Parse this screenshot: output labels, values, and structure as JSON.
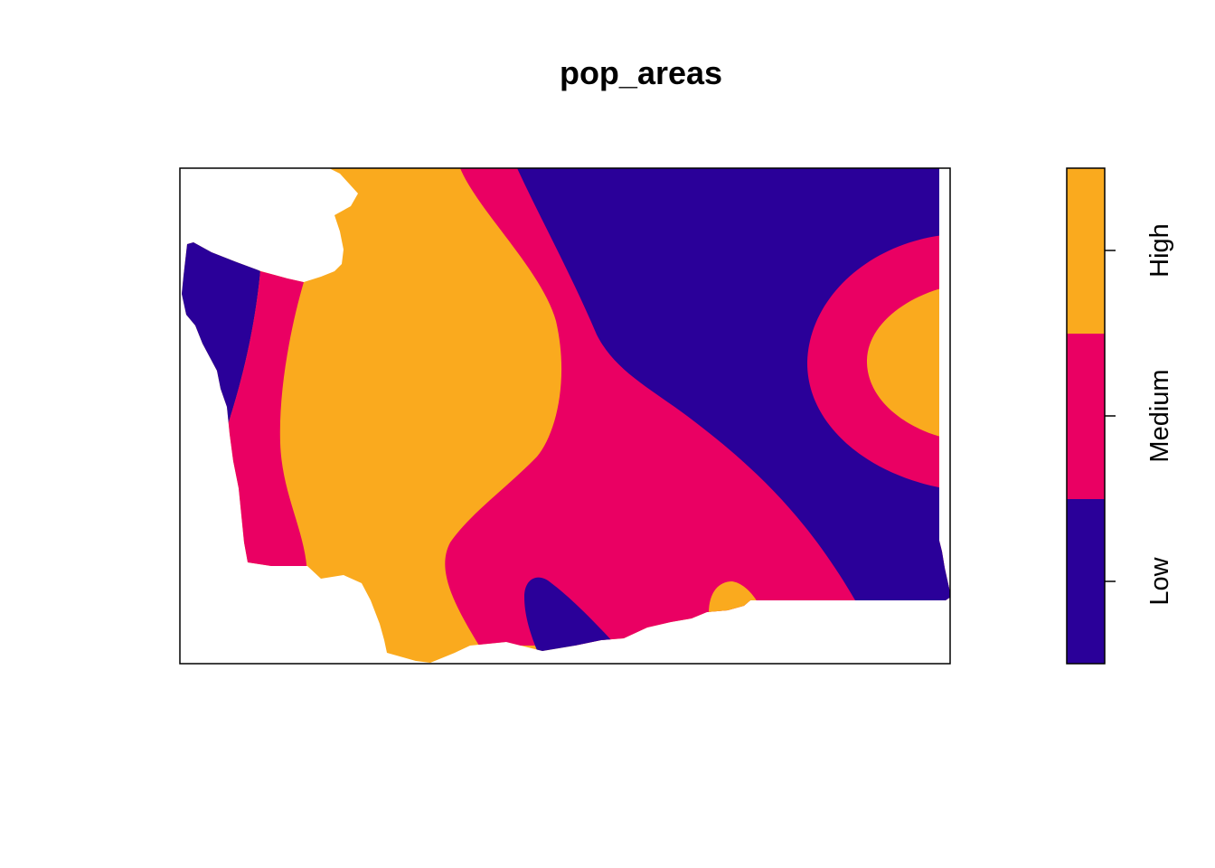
{
  "title": "pop_areas",
  "colors": {
    "low": "#2A0099",
    "medium": "#EA0063",
    "high": "#FAAA1E",
    "frame": "#000000",
    "background": "#FFFFFF"
  },
  "legend": {
    "type": "categorical",
    "entries": [
      {
        "label": "Low",
        "color": "#2A0099"
      },
      {
        "label": "Medium",
        "color": "#EA0063"
      },
      {
        "label": "High",
        "color": "#FAAA1E"
      }
    ]
  },
  "chart_data": {
    "type": "heatmap",
    "title": "pop_areas",
    "xlabel": "",
    "ylabel": "",
    "axes_drawn": false,
    "classes": [
      "Low",
      "Medium",
      "High"
    ],
    "legend_position": "right"
  }
}
